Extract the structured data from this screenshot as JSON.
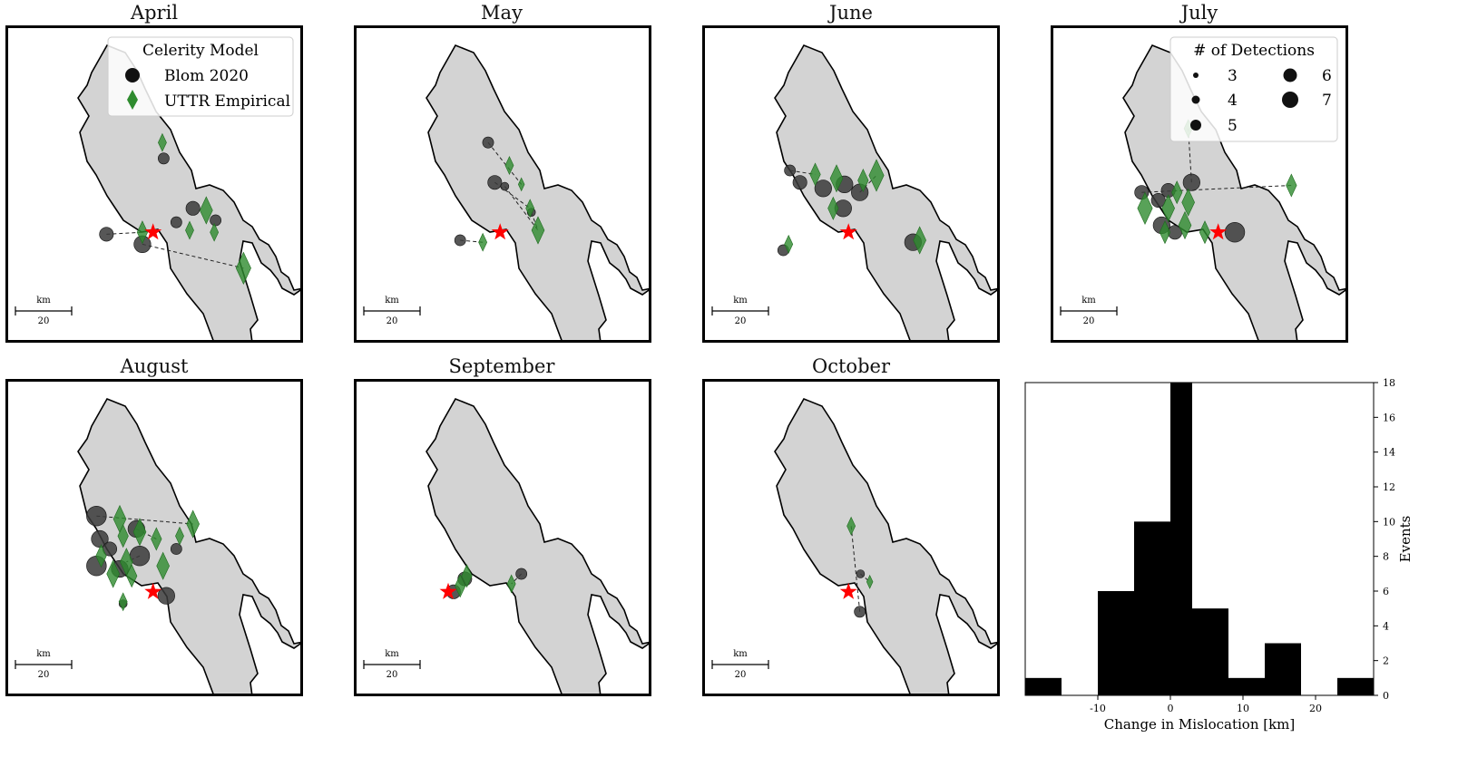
{
  "figure": {
    "colors": {
      "land": "#d3d3d3",
      "coast": "#000000",
      "blom": "#3a3a3a",
      "uttr": "#2e8b2e",
      "star": "#ff0000",
      "bar": "#000000"
    },
    "legend_model": {
      "title": "Celerity Model",
      "items": [
        {
          "label": "Blom 2020",
          "marker": "circle-black"
        },
        {
          "label": "UTTR Empirical",
          "marker": "diamond-green"
        }
      ]
    },
    "legend_detections": {
      "title": "# of Detections",
      "items": [
        "3",
        "4",
        "5",
        "6",
        "7"
      ]
    },
    "scalebar": {
      "unit": "km",
      "value": "20"
    }
  },
  "chart_data": [
    {
      "type": "scatter",
      "title": "April",
      "source_star": [
        -0.1,
        -0.62
      ],
      "blom": [
        [
          -0.8,
          -0.64,
          5
        ],
        [
          -0.26,
          -0.74,
          6
        ],
        [
          0.25,
          -0.52,
          4
        ],
        [
          0.5,
          -0.38,
          5
        ],
        [
          0.84,
          -0.5,
          4
        ],
        [
          0.06,
          0.12,
          4
        ]
      ],
      "uttr": [
        [
          -0.26,
          -0.62,
          5
        ],
        [
          0.45,
          -0.6,
          4
        ],
        [
          0.82,
          -0.62,
          4
        ],
        [
          0.7,
          -0.4,
          6
        ],
        [
          1.26,
          -0.98,
          7
        ],
        [
          0.04,
          0.28,
          4
        ]
      ],
      "links": [
        [
          0,
          0
        ],
        [
          1,
          4
        ]
      ]
    },
    {
      "type": "scatter",
      "title": "May",
      "source_star": [
        -0.12,
        -0.62
      ],
      "blom": [
        [
          -0.3,
          0.28,
          4
        ],
        [
          -0.2,
          -0.12,
          5
        ],
        [
          -0.05,
          -0.16,
          3
        ],
        [
          0.35,
          -0.42,
          3
        ],
        [
          -0.72,
          -0.7,
          4
        ]
      ],
      "uttr": [
        [
          0.02,
          0.05,
          4
        ],
        [
          0.2,
          -0.14,
          3
        ],
        [
          0.33,
          -0.38,
          4
        ],
        [
          0.45,
          -0.6,
          6
        ],
        [
          -0.38,
          -0.72,
          4
        ]
      ],
      "links": [
        [
          0,
          1
        ],
        [
          1,
          2
        ],
        [
          2,
          3
        ],
        [
          3,
          3
        ],
        [
          4,
          4
        ]
      ]
    },
    {
      "type": "scatter",
      "title": "June",
      "source_star": [
        -0.12,
        -0.62
      ],
      "blom": [
        [
          -1,
          0.0,
          4
        ],
        [
          -0.85,
          -0.12,
          5
        ],
        [
          -0.5,
          -0.18,
          6
        ],
        [
          -0.18,
          -0.14,
          6
        ],
        [
          0.05,
          -0.22,
          6
        ],
        [
          -0.2,
          -0.38,
          6
        ],
        [
          0.85,
          -0.72,
          6
        ],
        [
          -1.1,
          -0.8,
          4
        ]
      ],
      "uttr": [
        [
          -0.62,
          -0.04,
          5
        ],
        [
          -0.3,
          -0.08,
          6
        ],
        [
          0.3,
          -0.05,
          7
        ],
        [
          0.1,
          -0.1,
          5
        ],
        [
          -0.35,
          -0.38,
          5
        ],
        [
          0.95,
          -0.7,
          6
        ],
        [
          -1.02,
          -0.74,
          4
        ]
      ],
      "links": [
        [
          0,
          0
        ],
        [
          4,
          2
        ]
      ]
    },
    {
      "type": "scatter",
      "title": "July",
      "source_star": [
        0.2,
        -0.62
      ],
      "blom": [
        [
          -0.55,
          -0.2,
          5
        ],
        [
          -0.2,
          -0.12,
          6
        ],
        [
          -0.95,
          -0.22,
          5
        ],
        [
          -0.7,
          -0.3,
          5
        ],
        [
          -0.65,
          -0.55,
          6
        ],
        [
          -0.45,
          -0.62,
          5
        ],
        [
          0.45,
          -0.62,
          7
        ]
      ],
      "uttr": [
        [
          -0.25,
          0.42,
          4
        ],
        [
          -0.42,
          -0.22,
          5
        ],
        [
          -0.25,
          -0.32,
          6
        ],
        [
          -0.55,
          -0.38,
          6
        ],
        [
          -0.9,
          -0.38,
          7
        ],
        [
          -0.3,
          -0.55,
          6
        ],
        [
          -0.6,
          -0.62,
          5
        ],
        [
          0.0,
          -0.62,
          5
        ],
        [
          1.3,
          -0.15,
          5
        ]
      ],
      "links": [
        [
          1,
          0
        ],
        [
          2,
          8
        ]
      ]
    },
    {
      "type": "scatter",
      "title": "August",
      "source_star": [
        -0.1,
        -0.68
      ],
      "blom": [
        [
          -0.95,
          0.08,
          7
        ],
        [
          -0.9,
          -0.15,
          6
        ],
        [
          -0.75,
          -0.25,
          5
        ],
        [
          -0.35,
          -0.05,
          6
        ],
        [
          -0.3,
          -0.32,
          7
        ],
        [
          -0.95,
          -0.42,
          7
        ],
        [
          0.1,
          -0.72,
          6
        ],
        [
          0.25,
          -0.25,
          4
        ],
        [
          -0.55,
          -0.8,
          3
        ],
        [
          -0.6,
          -0.45,
          6
        ]
      ],
      "uttr": [
        [
          -0.6,
          0.05,
          6
        ],
        [
          -0.55,
          -0.12,
          5
        ],
        [
          -0.3,
          -0.08,
          6
        ],
        [
          -0.05,
          -0.15,
          5
        ],
        [
          0.5,
          0.0,
          6
        ],
        [
          -0.88,
          -0.32,
          5
        ],
        [
          -0.5,
          -0.38,
          6
        ],
        [
          0.05,
          -0.42,
          6
        ],
        [
          -0.7,
          -0.5,
          6
        ],
        [
          -0.42,
          -0.52,
          5
        ],
        [
          -0.55,
          -0.78,
          4
        ],
        [
          0.3,
          -0.12,
          4
        ]
      ],
      "links": [
        [
          0,
          4
        ],
        [
          3,
          3
        ],
        [
          4,
          6
        ]
      ]
    },
    {
      "type": "scatter",
      "title": "September",
      "source_star": [
        -0.9,
        -0.68
      ],
      "blom": [
        [
          -0.82,
          -0.68,
          5
        ],
        [
          -0.65,
          -0.55,
          5
        ],
        [
          0.2,
          -0.5,
          4
        ]
      ],
      "uttr": [
        [
          -0.72,
          -0.62,
          5
        ],
        [
          -0.62,
          -0.52,
          5
        ],
        [
          0.05,
          -0.6,
          4
        ]
      ],
      "links": [
        [
          2,
          2
        ]
      ]
    },
    {
      "type": "scatter",
      "title": "October",
      "source_star": [
        -0.12,
        -0.68
      ],
      "blom": [
        [
          0.06,
          -0.5,
          3
        ],
        [
          0.05,
          -0.88,
          4
        ]
      ],
      "uttr": [
        [
          -0.08,
          -0.02,
          4
        ],
        [
          0.2,
          -0.58,
          3
        ]
      ],
      "links": [
        [
          0,
          1
        ],
        [
          1,
          0
        ]
      ]
    },
    {
      "type": "bar",
      "title": "",
      "bins": [
        [
          -20,
          -15
        ],
        [
          -15,
          -10
        ],
        [
          -10,
          -5
        ],
        [
          -5,
          0
        ],
        [
          0,
          3
        ],
        [
          3,
          8
        ],
        [
          8,
          13
        ],
        [
          13,
          18
        ],
        [
          18,
          23
        ],
        [
          23,
          28
        ]
      ],
      "values": [
        1,
        0,
        6,
        10,
        18,
        5,
        1,
        3,
        0,
        1
      ],
      "xlabel": "Change in Mislocation [km]",
      "ylabel": "Events",
      "xlim": [
        -20,
        28
      ],
      "ylim": [
        0,
        18
      ],
      "xticks": [
        "-10",
        "0",
        "10",
        "20"
      ],
      "yticks": [
        "0",
        "2",
        "4",
        "6",
        "8",
        "10",
        "12",
        "14",
        "16",
        "18"
      ]
    }
  ]
}
